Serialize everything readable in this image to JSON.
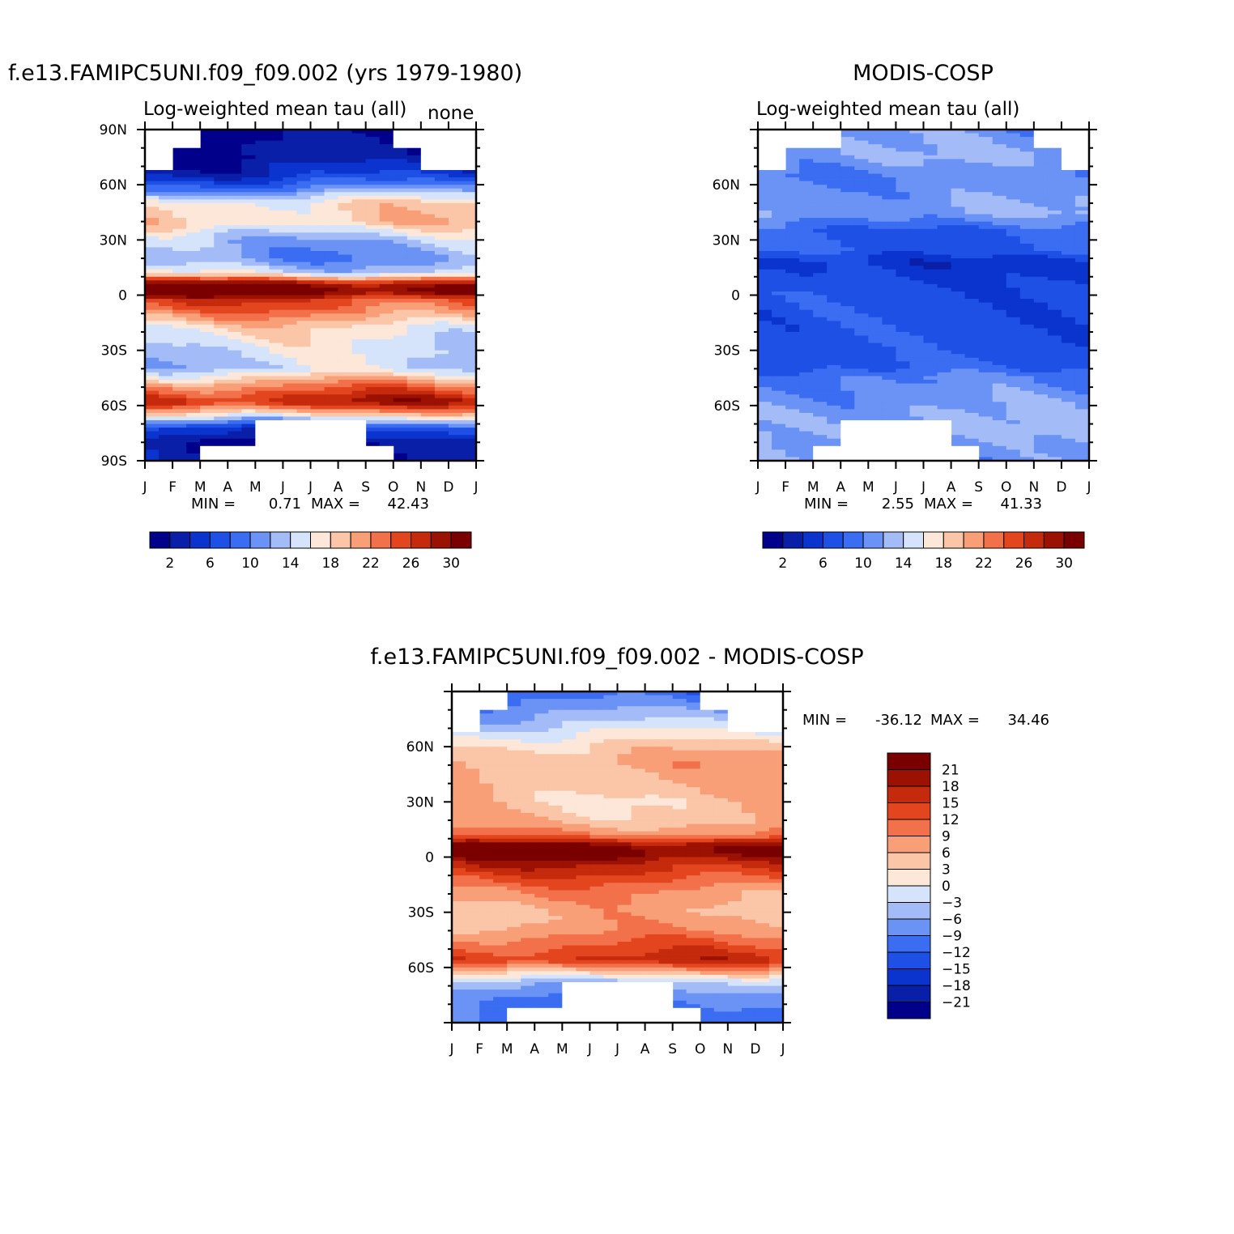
{
  "chart_data": [
    {
      "type": "heatmap",
      "id": "model",
      "title": "f.e13.FAMIPC5UNI.f09_f09.002 (yrs 1979-1980)",
      "subtitle": "Log-weighted mean tau (all)",
      "corner_label": "none",
      "x_ticks": [
        "J",
        "F",
        "M",
        "A",
        "M",
        "J",
        "J",
        "A",
        "S",
        "O",
        "N",
        "D",
        "J"
      ],
      "y_ticks": [
        {
          "value": 90,
          "label": "90N"
        },
        {
          "value": 60,
          "label": "60N"
        },
        {
          "value": 30,
          "label": "30N"
        },
        {
          "value": 0,
          "label": "0"
        },
        {
          "value": -30,
          "label": "30S"
        },
        {
          "value": -60,
          "label": "60S"
        },
        {
          "value": -90,
          "label": "90S"
        }
      ],
      "ylim": [
        -90,
        90
      ],
      "min_label": "MIN =",
      "min_value": "0.71",
      "max_label": "MAX =",
      "max_value": "42.43",
      "colorbar": {
        "orientation": "horizontal",
        "levels": [
          2,
          4,
          6,
          8,
          10,
          12,
          14,
          16,
          18,
          20,
          22,
          24,
          26,
          28,
          30
        ],
        "labels": [
          "2",
          "6",
          "10",
          "14",
          "18",
          "22",
          "26",
          "30"
        ]
      },
      "latitude_profile": [
        [
          90,
          0.5
        ],
        [
          75,
          1.5
        ],
        [
          65,
          5
        ],
        [
          58,
          10
        ],
        [
          50,
          17.5
        ],
        [
          40,
          18.5
        ],
        [
          30,
          13
        ],
        [
          20,
          11
        ],
        [
          12,
          15
        ],
        [
          6,
          30
        ],
        [
          2,
          32
        ],
        [
          -3,
          25
        ],
        [
          -8,
          23
        ],
        [
          -18,
          17
        ],
        [
          -28,
          15
        ],
        [
          -40,
          14
        ],
        [
          -50,
          23
        ],
        [
          -58,
          28
        ],
        [
          -65,
          18
        ],
        [
          -72,
          6
        ],
        [
          -80,
          1.5
        ],
        [
          -90,
          1
        ]
      ],
      "missing_months_by_latitude": {
        "north_above_80": [
          "J",
          "F",
          "O",
          "N",
          "D"
        ],
        "north_above_68": [
          "J",
          "N",
          "D"
        ],
        "south_below_68": [
          "M",
          "J",
          "J",
          "A"
        ],
        "south_below_82": [
          "M",
          "A",
          "M",
          "J",
          "J",
          "A",
          "S"
        ]
      }
    },
    {
      "type": "heatmap",
      "id": "obs",
      "title": "MODIS-COSP",
      "subtitle": "Log-weighted mean tau (all)",
      "x_ticks": [
        "J",
        "F",
        "M",
        "A",
        "M",
        "J",
        "J",
        "A",
        "S",
        "O",
        "N",
        "D",
        "J"
      ],
      "y_ticks": [
        {
          "value": 60,
          "label": "60N"
        },
        {
          "value": 30,
          "label": "30N"
        },
        {
          "value": 0,
          "label": "0"
        },
        {
          "value": -30,
          "label": "30S"
        },
        {
          "value": -60,
          "label": "60S"
        }
      ],
      "ylim": [
        -90,
        90
      ],
      "min_label": "MIN =",
      "min_value": "2.55",
      "max_label": "MAX =",
      "max_value": "41.33",
      "colorbar": {
        "orientation": "horizontal",
        "levels": [
          2,
          4,
          6,
          8,
          10,
          12,
          14,
          16,
          18,
          20,
          22,
          24,
          26,
          28,
          30
        ],
        "labels": [
          "2",
          "6",
          "10",
          "14",
          "18",
          "22",
          "26",
          "30"
        ]
      },
      "latitude_profile": [
        [
          90,
          11
        ],
        [
          75,
          12
        ],
        [
          65,
          10
        ],
        [
          55,
          11
        ],
        [
          45,
          12
        ],
        [
          35,
          8
        ],
        [
          25,
          8
        ],
        [
          18,
          5
        ],
        [
          10,
          6
        ],
        [
          0,
          7
        ],
        [
          -10,
          7
        ],
        [
          -20,
          7
        ],
        [
          -30,
          7
        ],
        [
          -40,
          8
        ],
        [
          -45,
          10
        ],
        [
          -55,
          11
        ],
        [
          -65,
          12
        ],
        [
          -75,
          12
        ],
        [
          -85,
          11
        ],
        [
          -90,
          11
        ]
      ],
      "missing_months_by_latitude": {
        "north_above_80": [
          "J",
          "F",
          "M",
          "N",
          "D"
        ],
        "north_above_68": [
          "J",
          "D"
        ],
        "south_below_68": [
          "A",
          "M",
          "J",
          "J"
        ],
        "south_below_82": [
          "M",
          "A",
          "M",
          "J",
          "J",
          "A"
        ]
      }
    },
    {
      "type": "heatmap",
      "id": "diff",
      "title": "f.e13.FAMIPC5UNI.f09_f09.002 - MODIS-COSP",
      "x_ticks": [
        "J",
        "F",
        "M",
        "A",
        "M",
        "J",
        "J",
        "A",
        "S",
        "O",
        "N",
        "D",
        "J"
      ],
      "y_ticks": [
        {
          "value": 60,
          "label": "60N"
        },
        {
          "value": 30,
          "label": "30N"
        },
        {
          "value": 0,
          "label": "0"
        },
        {
          "value": -30,
          "label": "30S"
        },
        {
          "value": -60,
          "label": "60S"
        }
      ],
      "ylim": [
        -90,
        90
      ],
      "min_label": "MIN =",
      "min_value": "-36.12",
      "max_label": "MAX =",
      "max_value": "34.46",
      "colorbar": {
        "orientation": "vertical",
        "levels": [
          -21,
          -18,
          -15,
          -12,
          -9,
          -6,
          -3,
          0,
          3,
          6,
          9,
          12,
          15,
          18,
          21
        ],
        "labels": [
          "21",
          "18",
          "15",
          "12",
          "9",
          "6",
          "3",
          "0",
          "-3",
          "-6",
          "-9",
          "-12",
          "-15",
          "-18",
          "-21"
        ]
      },
      "latitude_profile": [
        [
          90,
          -12
        ],
        [
          78,
          -6
        ],
        [
          70,
          -2
        ],
        [
          62,
          3
        ],
        [
          52,
          7
        ],
        [
          42,
          6
        ],
        [
          30,
          4
        ],
        [
          20,
          5
        ],
        [
          12,
          10
        ],
        [
          6,
          22
        ],
        [
          2,
          23
        ],
        [
          -3,
          18
        ],
        [
          -8,
          15
        ],
        [
          -18,
          9
        ],
        [
          -28,
          6
        ],
        [
          -38,
          7
        ],
        [
          -48,
          12
        ],
        [
          -56,
          16
        ],
        [
          -62,
          6
        ],
        [
          -68,
          -4
        ],
        [
          -76,
          -9
        ],
        [
          -90,
          -12
        ]
      ],
      "missing_months_by_latitude": {
        "north_above_80": [
          "J",
          "F",
          "O",
          "N",
          "D"
        ],
        "north_above_68": [
          "J",
          "N",
          "D"
        ],
        "south_below_68": [
          "M",
          "J",
          "J",
          "A"
        ],
        "south_below_82": [
          "M",
          "A",
          "M",
          "J",
          "J",
          "A",
          "S"
        ]
      }
    }
  ],
  "colors": {
    "palette": [
      "#00008b",
      "#0a1fa8",
      "#0b34cf",
      "#1e50e6",
      "#3a6df2",
      "#6b93f6",
      "#a3bcf7",
      "#d5e4fb",
      "#fde7d8",
      "#fbc5a8",
      "#f89f78",
      "#f3714a",
      "#e3461f",
      "#c42a0b",
      "#9b1102",
      "#7a0000"
    ]
  },
  "x_ticks": [
    "J",
    "F",
    "M",
    "A",
    "M",
    "J",
    "J",
    "A",
    "S",
    "O",
    "N",
    "D",
    "J"
  ]
}
